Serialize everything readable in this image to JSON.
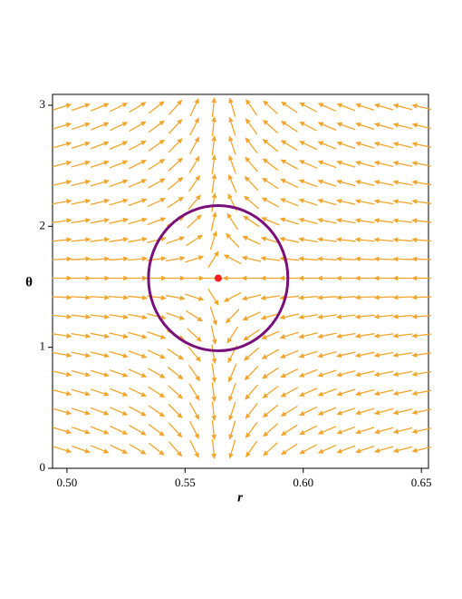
{
  "chart_data": {
    "type": "vector_field",
    "xlabel": "r",
    "ylabel": "θ",
    "xlim": [
      0.4939,
      0.653
    ],
    "ylim": [
      0,
      3.09
    ],
    "xticks": [
      {
        "value": 0.5,
        "label": "0.50"
      },
      {
        "value": 0.55,
        "label": "0.55"
      },
      {
        "value": 0.6,
        "label": "0.60"
      },
      {
        "value": 0.65,
        "label": "0.65"
      }
    ],
    "yticks": [
      0,
      1,
      2,
      3
    ],
    "field": {
      "color": "#f2a52b",
      "r": [
        0.498,
        0.506,
        0.514,
        0.522,
        0.53,
        0.538,
        0.546,
        0.554,
        0.562,
        0.57,
        0.578,
        0.586,
        0.594,
        0.602,
        0.61,
        0.618,
        0.626,
        0.634,
        0.642,
        0.65
      ],
      "dr": [
        0.066,
        0.058,
        0.05,
        0.042,
        0.034,
        0.026,
        0.018,
        0.01,
        0.002,
        -0.006,
        -0.014,
        -0.022,
        -0.03,
        -0.038,
        -0.046,
        -0.054,
        -0.062,
        -0.07,
        -0.078,
        -0.086
      ],
      "theta": [
        0.157,
        0.314,
        0.471,
        0.628,
        0.785,
        0.942,
        1.1,
        1.257,
        1.414,
        1.571,
        1.728,
        1.885,
        2.042,
        2.199,
        2.356,
        2.513,
        2.67,
        2.827,
        2.985
      ],
      "dtheta": [
        -0.395,
        -0.38,
        -0.356,
        -0.324,
        -0.283,
        -0.235,
        -0.182,
        -0.124,
        -0.062,
        0,
        0.062,
        0.124,
        0.182,
        0.235,
        0.283,
        0.324,
        0.356,
        0.38,
        0.395
      ]
    },
    "ellipse": {
      "center_r": 0.564,
      "center_theta": 1.571,
      "r_radius": 0.0295,
      "theta_radius": 0.6,
      "color": "#7a0f7a"
    },
    "point": {
      "r": 0.564,
      "theta": 1.571,
      "color": "#ff1a1a"
    }
  }
}
